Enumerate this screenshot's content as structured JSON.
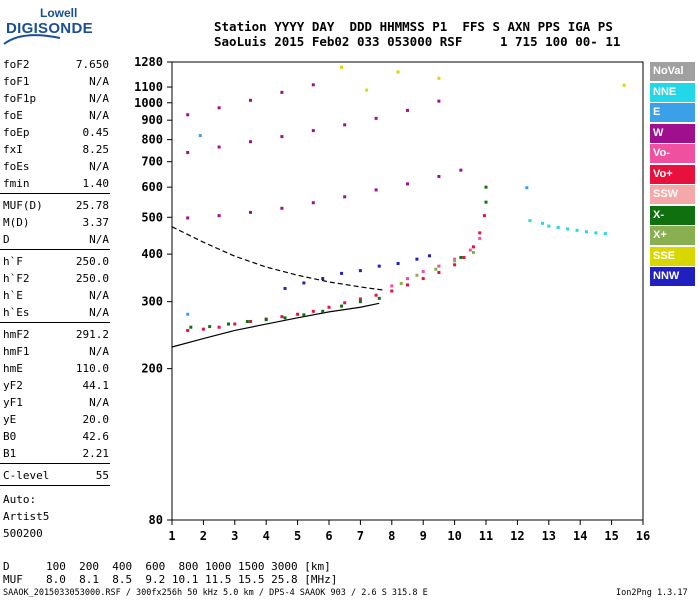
{
  "logo": {
    "top": "Lowell",
    "bottom": "DIGISONDE"
  },
  "header": {
    "line1": "Station YYYY DAY  DDD HHMMSS P1  FFS S AXN PPS IGA PS",
    "line2": "SaoLuis 2015 Feb02 033 053000 RSF     1 715 100 00- 11"
  },
  "params": {
    "group1": [
      {
        "k": "foF2",
        "v": "7.650"
      },
      {
        "k": "foF1",
        "v": "N/A"
      },
      {
        "k": "foF1p",
        "v": "N/A"
      },
      {
        "k": "foE",
        "v": "N/A"
      },
      {
        "k": "foEp",
        "v": "0.45"
      },
      {
        "k": "fxI",
        "v": "8.25"
      },
      {
        "k": "foEs",
        "v": "N/A"
      },
      {
        "k": "fmin",
        "v": "1.40"
      }
    ],
    "group2": [
      {
        "k": "MUF(D)",
        "v": "25.78"
      },
      {
        "k": "M(D)",
        "v": "3.37"
      },
      {
        "k": "D",
        "v": "N/A"
      }
    ],
    "group3": [
      {
        "k": "h`F",
        "v": "250.0"
      },
      {
        "k": "h`F2",
        "v": "250.0"
      },
      {
        "k": "h`E",
        "v": "N/A"
      },
      {
        "k": "h`Es",
        "v": "N/A"
      }
    ],
    "group4": [
      {
        "k": "hmF2",
        "v": "291.2"
      },
      {
        "k": "hmF1",
        "v": "N/A"
      },
      {
        "k": "hmE",
        "v": "110.0"
      },
      {
        "k": "yF2",
        "v": "44.1"
      },
      {
        "k": "yF1",
        "v": "N/A"
      },
      {
        "k": "yE",
        "v": "20.0"
      },
      {
        "k": "B0",
        "v": "42.6"
      },
      {
        "k": "B1",
        "v": "2.21"
      }
    ],
    "group5": [
      {
        "k": "C-level",
        "v": "55"
      }
    ],
    "autoscale": [
      "Auto:",
      "Artist5",
      "500200"
    ]
  },
  "legend": [
    {
      "label": "NoVal",
      "color": "#a0a0a0"
    },
    {
      "label": "NNE",
      "color": "#22d8e8"
    },
    {
      "label": "E",
      "color": "#3aa0e8"
    },
    {
      "label": "W",
      "color": "#a0108e"
    },
    {
      "label": "Vo-",
      "color": "#f050a0"
    },
    {
      "label": "Vo+",
      "color": "#e8103c"
    },
    {
      "label": "SSW",
      "color": "#f4a8a8"
    },
    {
      "label": "X-",
      "color": "#107010"
    },
    {
      "label": "X+",
      "color": "#88b050"
    },
    {
      "label": "SSE",
      "color": "#d8d800"
    },
    {
      "label": "NNW",
      "color": "#2020c0"
    }
  ],
  "dmuf": {
    "d_label": "D",
    "d_values": "100  200  400  600  800 1000 1500 3000 [km]",
    "muf_label": "MUF",
    "muf_values": "8.0  8.1  8.5  9.2 10.1 11.5 15.5 25.8 [MHz]"
  },
  "footer": {
    "left": "SAAOK_2015033053000.RSF / 300fx256h 50 kHz 5.0 km / DPS-4 SAAOK 903 / 2.6 S 315.8 E",
    "right": "Ion2Png 1.3.17"
  },
  "chart_data": {
    "type": "scatter",
    "title": "",
    "xlabel": "",
    "ylabel": "",
    "xlim": [
      1,
      16
    ],
    "ylim": [
      80,
      1280
    ],
    "y_scale": "log",
    "x_ticks": [
      "1",
      "2",
      "3",
      "4",
      "5",
      "6",
      "7",
      "8",
      "9",
      "10",
      "11",
      "12",
      "13",
      "14",
      "15",
      "16"
    ],
    "y_ticks": [
      "80",
      "200",
      "300",
      "400",
      "500",
      "600",
      "700",
      "800",
      "900",
      "1000",
      "1100",
      "1280"
    ],
    "series": [
      {
        "name": "Vo+",
        "color": "#e8103c",
        "points": [
          [
            1.5,
            252
          ],
          [
            2,
            254
          ],
          [
            2.5,
            257
          ],
          [
            3,
            262
          ],
          [
            3.5,
            266
          ],
          [
            4,
            270
          ],
          [
            4.5,
            274
          ],
          [
            5,
            278
          ],
          [
            5.5,
            283
          ],
          [
            6,
            290
          ],
          [
            6.5,
            298
          ],
          [
            7,
            305
          ],
          [
            7.5,
            312
          ],
          [
            8,
            320
          ],
          [
            8.5,
            332
          ],
          [
            9,
            345
          ],
          [
            9.5,
            358
          ],
          [
            10,
            375
          ],
          [
            10.3,
            392
          ],
          [
            10.6,
            418
          ],
          [
            10.8,
            455
          ],
          [
            10.95,
            505
          ]
        ]
      },
      {
        "name": "Vo-",
        "color": "#f050a0",
        "points": [
          [
            8,
            330
          ],
          [
            8.5,
            345
          ],
          [
            9,
            360
          ],
          [
            9.5,
            372
          ],
          [
            10,
            388
          ],
          [
            10.5,
            410
          ],
          [
            10.8,
            440
          ]
        ]
      },
      {
        "name": "X-",
        "color": "#107010",
        "points": [
          [
            1.6,
            257
          ],
          [
            2.2,
            258
          ],
          [
            2.8,
            262
          ],
          [
            3.4,
            266
          ],
          [
            4,
            269
          ],
          [
            4.6,
            272
          ],
          [
            5.2,
            277
          ],
          [
            5.8,
            283
          ],
          [
            6.4,
            292
          ],
          [
            7,
            300
          ],
          [
            7.6,
            306
          ],
          [
            10.2,
            392
          ],
          [
            11,
            548
          ],
          [
            11,
            600
          ]
        ]
      },
      {
        "name": "X+",
        "color": "#88b050",
        "points": [
          [
            8.3,
            335
          ],
          [
            8.8,
            352
          ],
          [
            9.4,
            365
          ],
          [
            10,
            384
          ],
          [
            10.6,
            404
          ]
        ]
      },
      {
        "name": "NNW",
        "color": "#2020c0",
        "points": [
          [
            4.6,
            325
          ],
          [
            5.2,
            336
          ],
          [
            5.8,
            345
          ],
          [
            6.4,
            356
          ],
          [
            7,
            362
          ],
          [
            7.6,
            372
          ],
          [
            8.2,
            378
          ],
          [
            8.8,
            388
          ],
          [
            9.2,
            396
          ]
        ]
      },
      {
        "name": "NNE",
        "color": "#22d8e8",
        "points": [
          [
            12.4,
            490
          ],
          [
            12.8,
            482
          ],
          [
            13,
            474
          ],
          [
            13.3,
            470
          ],
          [
            13.6,
            466
          ],
          [
            13.9,
            462
          ],
          [
            14.2,
            458
          ],
          [
            14.5,
            455
          ],
          [
            14.8,
            453
          ]
        ]
      },
      {
        "name": "W",
        "color": "#a0108e",
        "points": [
          [
            1.5,
            498
          ],
          [
            2.5,
            505
          ],
          [
            3.5,
            515
          ],
          [
            4.5,
            528
          ],
          [
            5.5,
            546
          ],
          [
            6.5,
            566
          ],
          [
            7.5,
            590
          ],
          [
            8.5,
            612
          ],
          [
            9.5,
            640
          ],
          [
            10.2,
            665
          ],
          [
            1.5,
            740
          ],
          [
            2.5,
            765
          ],
          [
            3.5,
            790
          ],
          [
            4.5,
            815
          ],
          [
            5.5,
            845
          ],
          [
            6.5,
            875
          ],
          [
            7.5,
            910
          ],
          [
            8.5,
            955
          ],
          [
            9.5,
            1010
          ],
          [
            1.5,
            930
          ],
          [
            2.5,
            970
          ],
          [
            3.5,
            1015
          ],
          [
            4.5,
            1065
          ],
          [
            5.5,
            1115
          ]
        ]
      },
      {
        "name": "SSE",
        "color": "#d8d800",
        "points": [
          [
            15.4,
            1112
          ],
          [
            6.4,
            1240
          ],
          [
            8.2,
            1205
          ],
          [
            9.5,
            1160
          ],
          [
            7.2,
            1080
          ]
        ]
      },
      {
        "name": "E",
        "color": "#3aa0e8",
        "points": [
          [
            1.5,
            278
          ],
          [
            12.3,
            598
          ],
          [
            1.9,
            820
          ]
        ]
      }
    ],
    "profile": {
      "type": "line",
      "points": [
        [
          1,
          228
        ],
        [
          2,
          240
        ],
        [
          3,
          252
        ],
        [
          4,
          262
        ],
        [
          5,
          272
        ],
        [
          6,
          282
        ],
        [
          7,
          290
        ],
        [
          7.6,
          297
        ]
      ]
    },
    "profile_dashed": {
      "type": "line",
      "points": [
        [
          1,
          472
        ],
        [
          2,
          430
        ],
        [
          3,
          395
        ],
        [
          4,
          370
        ],
        [
          5,
          352
        ],
        [
          6,
          338
        ],
        [
          7,
          328
        ],
        [
          7.7,
          322
        ]
      ]
    }
  }
}
